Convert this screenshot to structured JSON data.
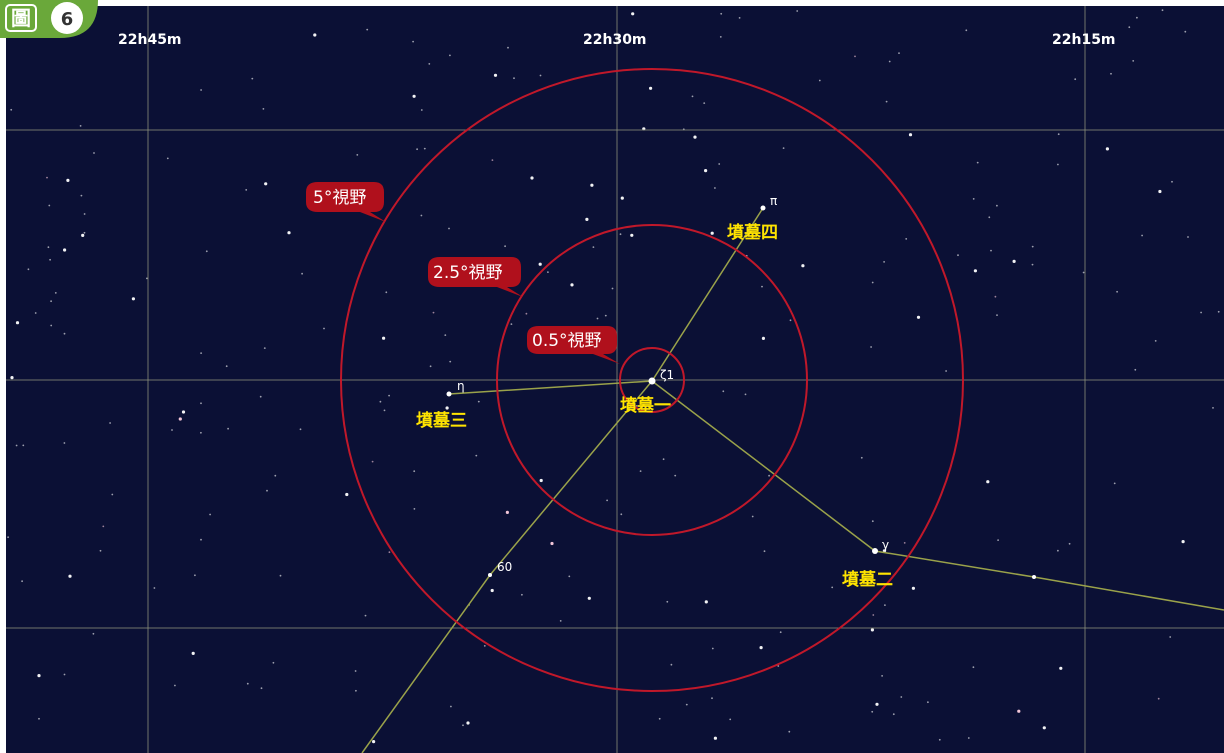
{
  "badge": {
    "label": "圖",
    "number": "6"
  },
  "ra_labels": [
    "22h45m",
    "22h30m",
    "22h15m"
  ],
  "fov_labels": [
    "5°視野",
    "2.5°視野",
    "0.5°視野"
  ],
  "stars": [
    {
      "symbol": "π",
      "name": "墳墓四"
    },
    {
      "symbol": "η",
      "name": "墳墓三"
    },
    {
      "symbol": "ζ1",
      "name": "墳墓一"
    },
    {
      "symbol": "γ",
      "name": "墳墓二"
    },
    {
      "symbol": "60"
    }
  ]
}
